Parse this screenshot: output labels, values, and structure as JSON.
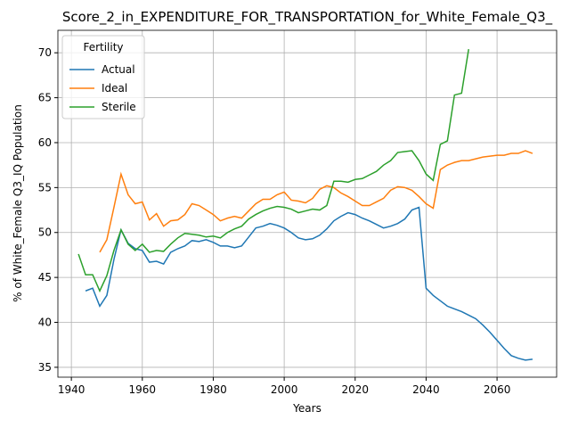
{
  "chart_data": {
    "type": "line",
    "title": "Score_2_in_EXPENDITURE_FOR_TRANSPORTATION_for_White_Female_Q3_",
    "xlabel": "Years",
    "ylabel": "% of White_Female Q3_IQ Population",
    "x": [
      1942,
      1944,
      1946,
      1948,
      1950,
      1952,
      1954,
      1956,
      1958,
      1960,
      1962,
      1964,
      1966,
      1968,
      1970,
      1972,
      1974,
      1976,
      1978,
      1980,
      1982,
      1984,
      1986,
      1988,
      1990,
      1992,
      1994,
      1996,
      1998,
      2000,
      2002,
      2004,
      2006,
      2008,
      2010,
      2012,
      2014,
      2016,
      2018,
      2020,
      2022,
      2024,
      2026,
      2028,
      2030,
      2032,
      2034,
      2036,
      2038,
      2040,
      2042,
      2044,
      2046,
      2048,
      2050,
      2052,
      2054,
      2056,
      2058,
      2060,
      2062,
      2064,
      2066,
      2068,
      2070
    ],
    "series": [
      {
        "name": "Actual",
        "color": "#1f77b4",
        "values": [
          null,
          43.5,
          43.8,
          41.8,
          43,
          47,
          50.3,
          48.8,
          48.2,
          48,
          46.7,
          46.8,
          46.5,
          47.8,
          48.2,
          48.5,
          49.1,
          49,
          49.2,
          48.9,
          48.5,
          48.5,
          48.3,
          48.5,
          49.5,
          50.5,
          50.7,
          51,
          50.8,
          50.5,
          50,
          49.4,
          49.2,
          49.3,
          49.7,
          50.4,
          51.3,
          51.8,
          52.2,
          52,
          51.6,
          51.3,
          50.9,
          50.5,
          50.7,
          51,
          51.5,
          52.5,
          52.8,
          43.8,
          43,
          42.4,
          41.8,
          41.5,
          41.2,
          40.8,
          40.4,
          39.7,
          38.9,
          38,
          37.1,
          36.3,
          36,
          35.8,
          35.9
        ]
      },
      {
        "name": "Ideal",
        "color": "#ff7f0e",
        "values": [
          null,
          null,
          null,
          47.8,
          49.2,
          52.8,
          56.5,
          54.2,
          53.2,
          53.4,
          51.4,
          52.1,
          50.7,
          51.3,
          51.4,
          52,
          53.2,
          53,
          52.5,
          52,
          51.3,
          51.6,
          51.8,
          51.6,
          52.4,
          53.2,
          53.7,
          53.7,
          54.2,
          54.5,
          53.6,
          53.5,
          53.3,
          53.8,
          54.8,
          55.2,
          55,
          54.4,
          54,
          53.5,
          53,
          53,
          53.4,
          53.8,
          54.7,
          55.1,
          55,
          54.7,
          54,
          53.2,
          52.7,
          57,
          57.5,
          57.8,
          58,
          58,
          58.2,
          58.4,
          58.5,
          58.6,
          58.6,
          58.8,
          58.8,
          59.1,
          58.8
        ]
      },
      {
        "name": "Sterile",
        "color": "#2ca02c",
        "values": [
          47.6,
          45.3,
          45.3,
          43.5,
          45.2,
          48,
          50.3,
          48.7,
          48,
          48.7,
          47.8,
          48,
          47.9,
          48.7,
          49.4,
          49.9,
          49.8,
          49.7,
          49.5,
          49.6,
          49.4,
          50,
          50.4,
          50.7,
          51.5,
          52,
          52.4,
          52.7,
          52.9,
          52.8,
          52.6,
          52.2,
          52.4,
          52.6,
          52.5,
          53,
          55.7,
          55.7,
          55.6,
          55.9,
          56,
          56.4,
          56.8,
          57.5,
          58,
          58.9,
          59,
          59.1,
          58,
          56.5,
          55.8,
          59.8,
          60.2,
          65.3,
          65.5,
          70.4,
          null,
          null,
          null,
          null,
          null,
          null,
          null,
          null,
          null
        ]
      }
    ],
    "xlim": [
      1936.2,
      2076.8
    ],
    "ylim": [
      33.9,
      72.5
    ],
    "xticks": [
      1940,
      1960,
      1980,
      2000,
      2020,
      2040,
      2060
    ],
    "yticks": [
      35,
      40,
      45,
      50,
      55,
      60,
      65,
      70
    ],
    "grid": true,
    "legend": {
      "title": "Fertility",
      "position": "upper left"
    }
  }
}
